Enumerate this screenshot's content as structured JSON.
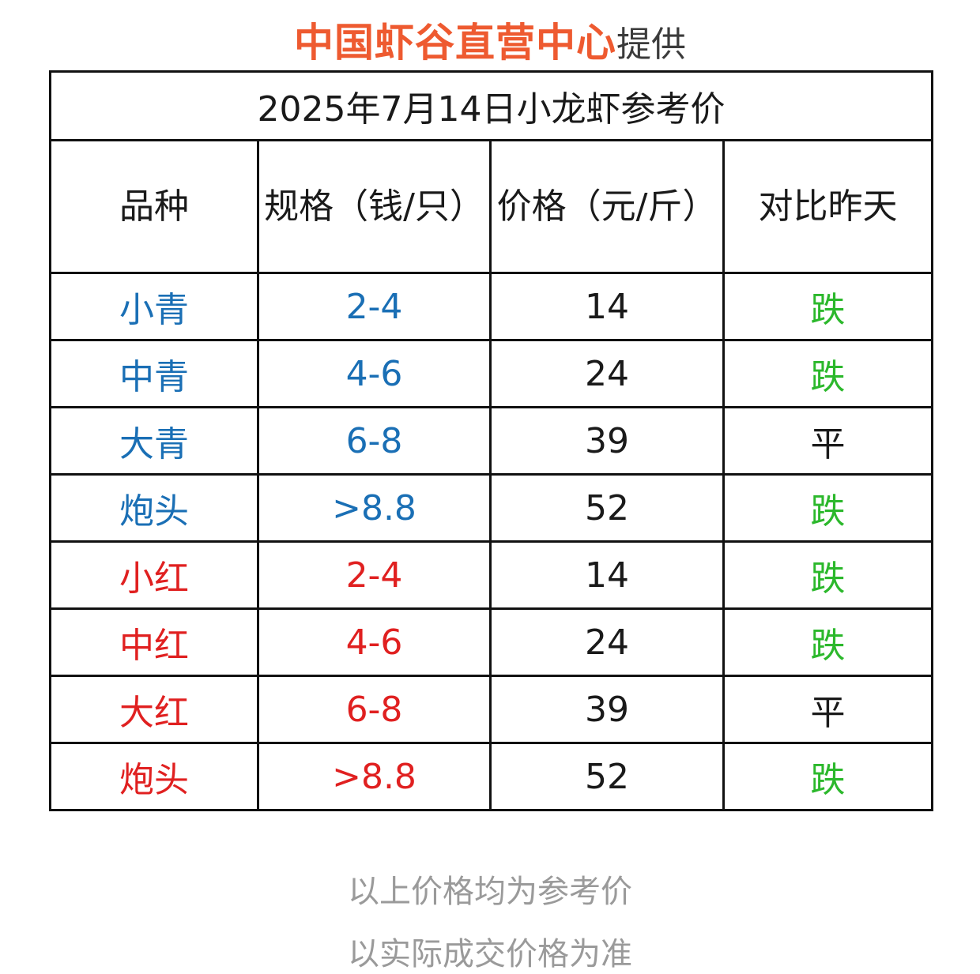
{
  "header": {
    "brand": "中国虾谷直营中心",
    "suffix": "提供"
  },
  "table": {
    "title": "2025年7月14日小龙虾参考价",
    "columns": [
      "品种",
      "规格（钱/只）",
      "价格（元/斤）",
      "对比昨天"
    ],
    "rows": [
      {
        "variety": "小青",
        "spec": "2-4",
        "price": "14",
        "trend": "跌",
        "color": "blue"
      },
      {
        "variety": "中青",
        "spec": "4-6",
        "price": "24",
        "trend": "跌",
        "color": "blue"
      },
      {
        "variety": "大青",
        "spec": "6-8",
        "price": "39",
        "trend": "平",
        "color": "blue"
      },
      {
        "variety": "炮头",
        "spec": ">8.8",
        "price": "52",
        "trend": "跌",
        "color": "blue"
      },
      {
        "variety": "小红",
        "spec": "2-4",
        "price": "14",
        "trend": "跌",
        "color": "red"
      },
      {
        "variety": "中红",
        "spec": "4-6",
        "price": "24",
        "trend": "跌",
        "color": "red"
      },
      {
        "variety": "大红",
        "spec": "6-8",
        "price": "39",
        "trend": "平",
        "color": "red"
      },
      {
        "variety": "炮头",
        "spec": ">8.8",
        "price": "52",
        "trend": "跌",
        "color": "red"
      }
    ]
  },
  "footer": {
    "line1": "以上价格均为参考价",
    "line2": "以实际成交价格为准"
  },
  "colors": {
    "brand": "#ee5a30",
    "blue": "#1a6fb5",
    "red": "#e02020",
    "down": "#2cb82c",
    "footer": "#9a9a9a"
  }
}
